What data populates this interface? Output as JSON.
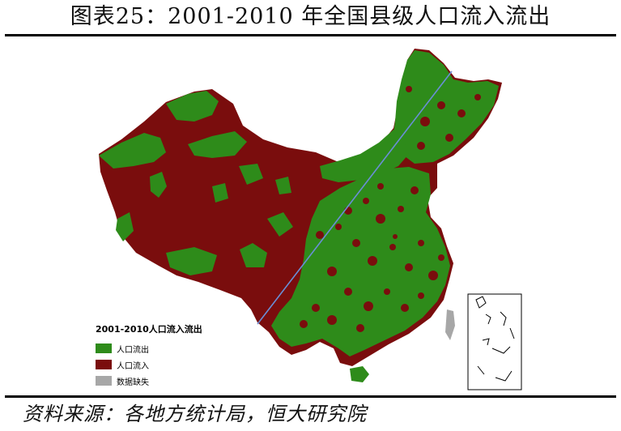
{
  "title": "图表25：2001-2010 年全国县级人口流入流出",
  "legend": {
    "title": "2001-2010人口流入流出",
    "items": [
      {
        "label": "人口流出",
        "color": "#2e8b1a",
        "icon": "green-square"
      },
      {
        "label": "人口流入",
        "color": "#7a0d0d",
        "icon": "dark-red-square"
      },
      {
        "label": "数据缺失",
        "color": "#a7a7a7",
        "icon": "gray-square"
      }
    ]
  },
  "source": "资料来源：各地方统计局，恒大研究院",
  "colors": {
    "outflow": "#2e8b1a",
    "inflow": "#7a0d0d",
    "missing": "#a7a7a7",
    "hu_line": "#6a8ed6"
  }
}
